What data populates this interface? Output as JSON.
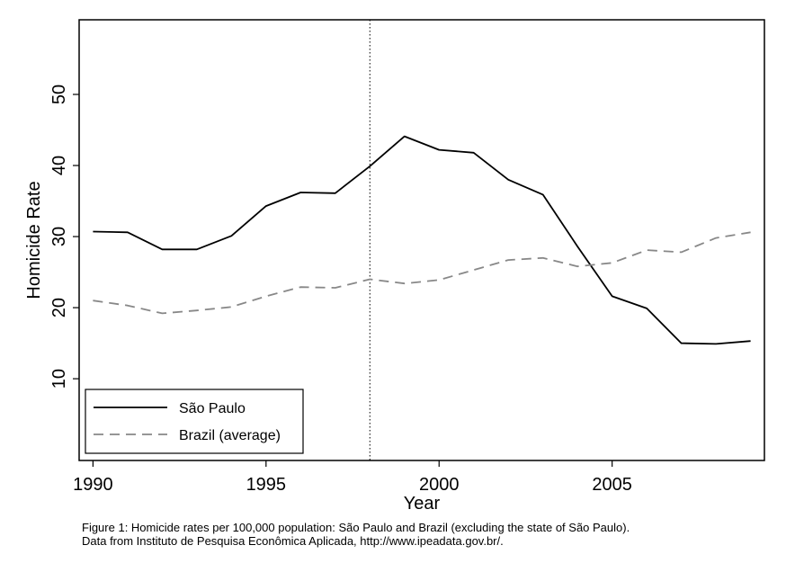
{
  "chart_data": {
    "type": "line",
    "xlabel": "Year",
    "ylabel": "Homicide Rate",
    "xlim": [
      1989.6,
      2009.4
    ],
    "ylim": [
      -1.5,
      60.5
    ],
    "x_ticks": [
      "1990",
      "1995",
      "2000",
      "2005"
    ],
    "y_ticks": [
      "10",
      "20",
      "30",
      "40",
      "50"
    ],
    "vertical_reference_line": {
      "x": 1998,
      "style": "dotted"
    },
    "legend": {
      "position": "bottom-left"
    },
    "grid": false,
    "x": [
      1990,
      1991,
      1992,
      1993,
      1994,
      1995,
      1996,
      1997,
      1998,
      1999,
      2000,
      2001,
      2002,
      2003,
      2004,
      2005,
      2006,
      2007,
      2008,
      2009
    ],
    "series": [
      {
        "name": "São Paulo",
        "color": "#000000",
        "style": "solid",
        "values": [
          30.7,
          30.6,
          28.2,
          28.2,
          30.1,
          34.3,
          36.2,
          36.1,
          39.9,
          44.1,
          42.2,
          41.8,
          38.0,
          35.9,
          28.6,
          21.6,
          19.9,
          15.0,
          14.9,
          15.3
        ]
      },
      {
        "name": "Brazil (average)",
        "color": "#888888",
        "style": "dashed",
        "values": [
          21.0,
          20.3,
          19.2,
          19.6,
          20.1,
          21.6,
          22.9,
          22.8,
          24.0,
          23.4,
          23.9,
          25.3,
          26.7,
          27.0,
          25.8,
          26.3,
          28.1,
          27.8,
          29.8,
          30.6
        ]
      }
    ]
  },
  "caption": {
    "line1": "Figure 1: Homicide rates per 100,000 population: São Paulo and Brazil (excluding the state of São Paulo).",
    "line2": "Data from Instituto de Pesquisa Econômica Aplicada, http://www.ipeadata.gov.br/."
  }
}
